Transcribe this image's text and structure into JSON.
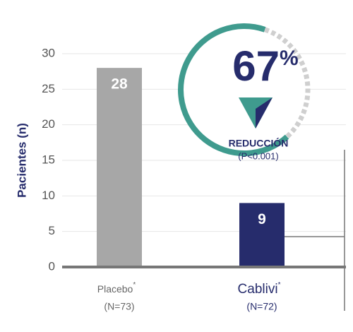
{
  "chart_data": {
    "type": "bar",
    "ylabel": "Pacientes (n)",
    "categories": [
      "Placebo",
      "Cablivi"
    ],
    "category_marks": [
      "*",
      "*"
    ],
    "category_notes": [
      "(N=73)",
      "(N=72)"
    ],
    "values": [
      28,
      9
    ],
    "colors": [
      "#a7a7a7",
      "#262c6c"
    ],
    "ylim": [
      0,
      30
    ],
    "yticks": [
      0,
      5,
      10,
      15,
      20,
      25,
      30
    ],
    "grid": true,
    "reduction_value": 67,
    "reduction_unit": "%",
    "reduction_label": "REDUCCIÓN",
    "p_value_label": "(P<0.001)"
  }
}
